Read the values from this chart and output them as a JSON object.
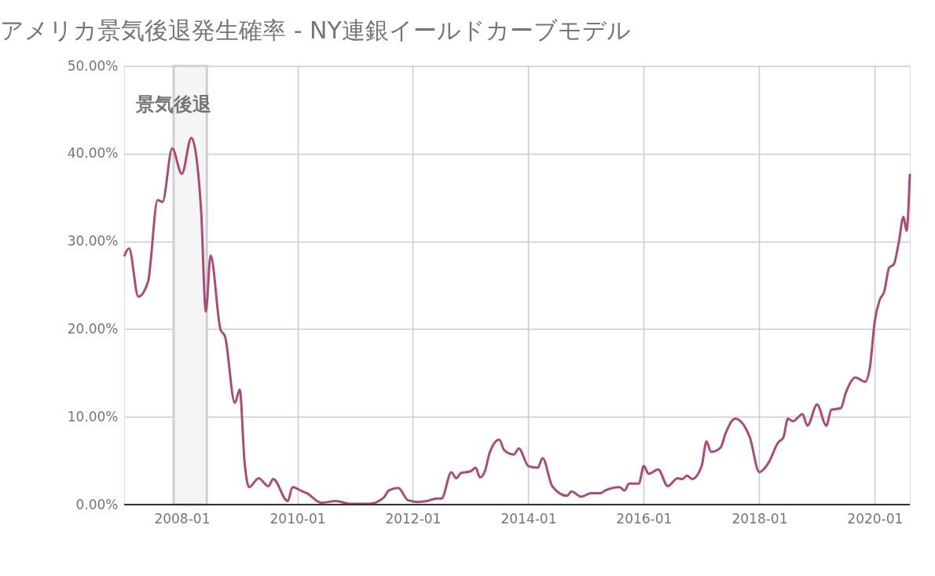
{
  "chart_data": {
    "type": "line",
    "title": "アメリカ景気後退発生確率 - NY連銀イールドカーブモデル",
    "x": [
      "2007-01",
      "2007-02",
      "2007-04",
      "2007-06",
      "2007-08",
      "2007-09",
      "2007-11",
      "2008-01",
      "2008-03",
      "2008-05",
      "2008-06",
      "2008-07",
      "2008-09",
      "2008-10",
      "2008-12",
      "2009-01",
      "2009-02",
      "2009-03",
      "2009-05",
      "2009-07",
      "2009-08",
      "2009-11",
      "2009-12",
      "2010-02",
      "2010-03",
      "2010-06",
      "2010-09",
      "2010-12",
      "2011-04",
      "2011-07",
      "2011-08",
      "2011-10",
      "2011-12",
      "2012-02",
      "2012-04",
      "2012-06",
      "2012-07",
      "2012-09",
      "2012-10",
      "2012-11",
      "2013-01",
      "2013-02",
      "2013-03",
      "2013-04",
      "2013-05",
      "2013-07",
      "2013-08",
      "2013-10",
      "2013-11",
      "2014-01",
      "2014-03",
      "2014-04",
      "2014-06",
      "2014-09",
      "2014-10",
      "2014-12",
      "2015-02",
      "2015-04",
      "2015-05",
      "2015-08",
      "2015-09",
      "2015-10",
      "2015-12",
      "2016-01",
      "2016-02",
      "2016-04",
      "2016-06",
      "2016-08",
      "2016-09",
      "2016-10",
      "2016-11",
      "2017-01",
      "2017-02",
      "2017-03",
      "2017-05",
      "2017-06",
      "2017-08",
      "2017-11",
      "2018-01",
      "2018-02",
      "2018-03",
      "2018-05",
      "2018-06",
      "2018-07",
      "2018-08",
      "2018-10",
      "2018-11",
      "2019-01",
      "2019-03",
      "2019-04",
      "2019-06",
      "2019-07",
      "2019-09",
      "2019-11",
      "2019-12",
      "2020-01",
      "2020-02",
      "2020-03",
      "2020-04",
      "2020-05",
      "2020-06",
      "2020-07",
      "2020-07-20",
      "2020-08-10"
    ],
    "series": [
      {
        "color": "#a64d79",
        "values": [
          28.3,
          29.2,
          23.7,
          25.4,
          34.7,
          34.5,
          40.6,
          37.7,
          41.8,
          33.8,
          22.0,
          28.4,
          20.0,
          19.1,
          11.6,
          13.1,
          4.8,
          2.0,
          3.0,
          2.1,
          2.9,
          0.4,
          2.0,
          1.5,
          1.3,
          0.2,
          0.4,
          0.1,
          0.1,
          0.8,
          1.6,
          1.9,
          0.5,
          0.3,
          0.4,
          0.7,
          0.7,
          3.7,
          3.0,
          3.6,
          3.8,
          4.2,
          3.1,
          3.8,
          5.9,
          7.4,
          6.2,
          5.7,
          6.4,
          4.4,
          4.2,
          5.3,
          2.1,
          1.0,
          1.5,
          0.9,
          1.3,
          1.3,
          1.6,
          2.0,
          1.6,
          2.4,
          2.4,
          4.4,
          3.5,
          4.0,
          2.1,
          3.0,
          2.9,
          3.3,
          2.9,
          4.4,
          7.2,
          6.0,
          6.5,
          8.1,
          9.8,
          7.7,
          3.7,
          4.1,
          4.8,
          7.1,
          7.6,
          9.8,
          9.5,
          10.3,
          9.0,
          11.4,
          9.0,
          10.8,
          11.0,
          12.7,
          14.5,
          14.0,
          15.6,
          20.9,
          23.3,
          24.3,
          27.0,
          27.4,
          29.9,
          32.8,
          31.2,
          37.7
        ]
      }
    ],
    "xlim": [
      "2007-01",
      "2020-08-10"
    ],
    "xticks": [
      "2008-01",
      "2010-01",
      "2012-01",
      "2014-01",
      "2016-01",
      "2018-01",
      "2020-01"
    ],
    "ylim": [
      0,
      50
    ],
    "yticks": [
      {
        "value": 0,
        "label": "0.00%"
      },
      {
        "value": 10,
        "label": "10.00%"
      },
      {
        "value": 20,
        "label": "20.00%"
      },
      {
        "value": 30,
        "label": "30.00%"
      },
      {
        "value": 40,
        "label": "40.00%"
      },
      {
        "value": 50,
        "label": "50.00%"
      }
    ],
    "grid": true,
    "line_style": "solid",
    "marker": "none",
    "bands": [
      {
        "axis": "x",
        "from": "2007-11-10",
        "to": "2008-06-07",
        "label": "景気後退",
        "color": "#f5f5f5"
      }
    ]
  }
}
